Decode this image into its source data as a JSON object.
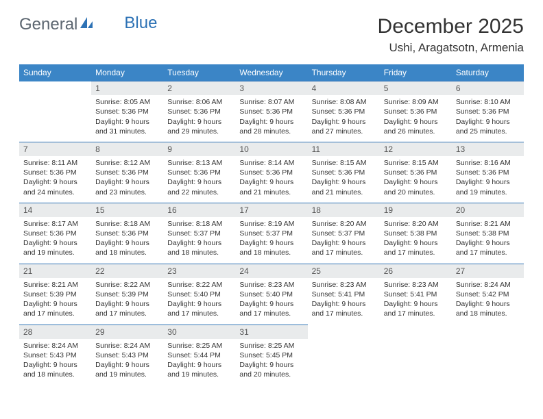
{
  "brand": {
    "part1": "General",
    "part2": "Blue"
  },
  "title": "December 2025",
  "location": "Ushi, Aragatsotn, Armenia",
  "colors": {
    "header_bg": "#3b85c6",
    "header_text": "#ffffff",
    "row_divider": "#2d72b5",
    "daynum_bg": "#e9ebec",
    "text": "#333333",
    "brand_gray": "#5c6670",
    "brand_blue": "#2d72b5",
    "page_bg": "#ffffff"
  },
  "typography": {
    "month_title_size": 30,
    "location_size": 17,
    "th_size": 12,
    "cell_size": 10.5,
    "font_family": "Arial"
  },
  "weekdays": [
    "Sunday",
    "Monday",
    "Tuesday",
    "Wednesday",
    "Thursday",
    "Friday",
    "Saturday"
  ],
  "weeks": [
    [
      null,
      {
        "n": "1",
        "sr": "8:05 AM",
        "ss": "5:36 PM",
        "dl": "9 hours and 31 minutes."
      },
      {
        "n": "2",
        "sr": "8:06 AM",
        "ss": "5:36 PM",
        "dl": "9 hours and 29 minutes."
      },
      {
        "n": "3",
        "sr": "8:07 AM",
        "ss": "5:36 PM",
        "dl": "9 hours and 28 minutes."
      },
      {
        "n": "4",
        "sr": "8:08 AM",
        "ss": "5:36 PM",
        "dl": "9 hours and 27 minutes."
      },
      {
        "n": "5",
        "sr": "8:09 AM",
        "ss": "5:36 PM",
        "dl": "9 hours and 26 minutes."
      },
      {
        "n": "6",
        "sr": "8:10 AM",
        "ss": "5:36 PM",
        "dl": "9 hours and 25 minutes."
      }
    ],
    [
      {
        "n": "7",
        "sr": "8:11 AM",
        "ss": "5:36 PM",
        "dl": "9 hours and 24 minutes."
      },
      {
        "n": "8",
        "sr": "8:12 AM",
        "ss": "5:36 PM",
        "dl": "9 hours and 23 minutes."
      },
      {
        "n": "9",
        "sr": "8:13 AM",
        "ss": "5:36 PM",
        "dl": "9 hours and 22 minutes."
      },
      {
        "n": "10",
        "sr": "8:14 AM",
        "ss": "5:36 PM",
        "dl": "9 hours and 21 minutes."
      },
      {
        "n": "11",
        "sr": "8:15 AM",
        "ss": "5:36 PM",
        "dl": "9 hours and 21 minutes."
      },
      {
        "n": "12",
        "sr": "8:15 AM",
        "ss": "5:36 PM",
        "dl": "9 hours and 20 minutes."
      },
      {
        "n": "13",
        "sr": "8:16 AM",
        "ss": "5:36 PM",
        "dl": "9 hours and 19 minutes."
      }
    ],
    [
      {
        "n": "14",
        "sr": "8:17 AM",
        "ss": "5:36 PM",
        "dl": "9 hours and 19 minutes."
      },
      {
        "n": "15",
        "sr": "8:18 AM",
        "ss": "5:36 PM",
        "dl": "9 hours and 18 minutes."
      },
      {
        "n": "16",
        "sr": "8:18 AM",
        "ss": "5:37 PM",
        "dl": "9 hours and 18 minutes."
      },
      {
        "n": "17",
        "sr": "8:19 AM",
        "ss": "5:37 PM",
        "dl": "9 hours and 18 minutes."
      },
      {
        "n": "18",
        "sr": "8:20 AM",
        "ss": "5:37 PM",
        "dl": "9 hours and 17 minutes."
      },
      {
        "n": "19",
        "sr": "8:20 AM",
        "ss": "5:38 PM",
        "dl": "9 hours and 17 minutes."
      },
      {
        "n": "20",
        "sr": "8:21 AM",
        "ss": "5:38 PM",
        "dl": "9 hours and 17 minutes."
      }
    ],
    [
      {
        "n": "21",
        "sr": "8:21 AM",
        "ss": "5:39 PM",
        "dl": "9 hours and 17 minutes."
      },
      {
        "n": "22",
        "sr": "8:22 AM",
        "ss": "5:39 PM",
        "dl": "9 hours and 17 minutes."
      },
      {
        "n": "23",
        "sr": "8:22 AM",
        "ss": "5:40 PM",
        "dl": "9 hours and 17 minutes."
      },
      {
        "n": "24",
        "sr": "8:23 AM",
        "ss": "5:40 PM",
        "dl": "9 hours and 17 minutes."
      },
      {
        "n": "25",
        "sr": "8:23 AM",
        "ss": "5:41 PM",
        "dl": "9 hours and 17 minutes."
      },
      {
        "n": "26",
        "sr": "8:23 AM",
        "ss": "5:41 PM",
        "dl": "9 hours and 17 minutes."
      },
      {
        "n": "27",
        "sr": "8:24 AM",
        "ss": "5:42 PM",
        "dl": "9 hours and 18 minutes."
      }
    ],
    [
      {
        "n": "28",
        "sr": "8:24 AM",
        "ss": "5:43 PM",
        "dl": "9 hours and 18 minutes."
      },
      {
        "n": "29",
        "sr": "8:24 AM",
        "ss": "5:43 PM",
        "dl": "9 hours and 19 minutes."
      },
      {
        "n": "30",
        "sr": "8:25 AM",
        "ss": "5:44 PM",
        "dl": "9 hours and 19 minutes."
      },
      {
        "n": "31",
        "sr": "8:25 AM",
        "ss": "5:45 PM",
        "dl": "9 hours and 20 minutes."
      },
      null,
      null,
      null
    ]
  ],
  "labels": {
    "sunrise_prefix": "Sunrise: ",
    "sunset_prefix": "Sunset: ",
    "daylight_prefix": "Daylight: "
  }
}
